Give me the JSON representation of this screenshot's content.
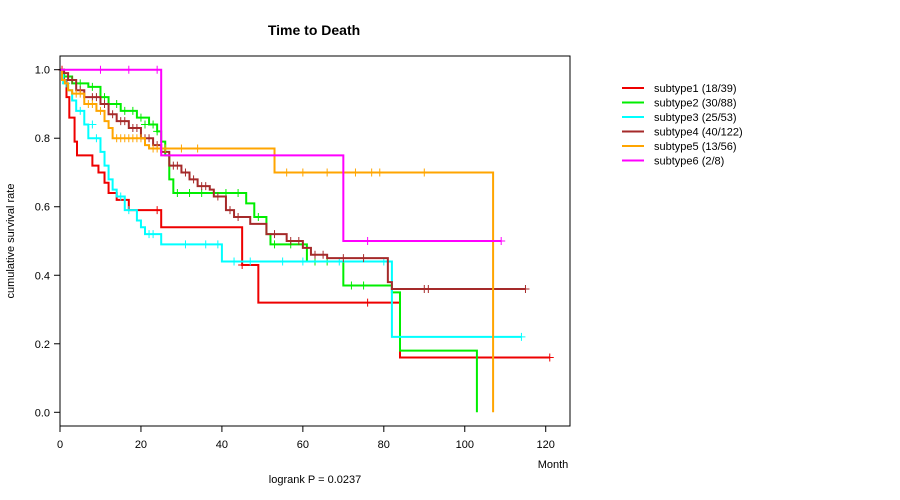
{
  "chart_data": {
    "type": "line",
    "title": "Time to Death",
    "xlabel": "Month",
    "ylabel": "cumulative survival rate",
    "footnote": "logrank P = 0.0237",
    "xlim": [
      0,
      126
    ],
    "ylim": [
      -0.04,
      1.04
    ],
    "x_ticks": [
      0,
      20,
      40,
      60,
      80,
      100,
      120
    ],
    "y_ticks": [
      0.0,
      0.2,
      0.4,
      0.6,
      0.8,
      1.0
    ],
    "y_tick_labels": [
      "0.0",
      "0.2",
      "0.4",
      "0.6",
      "0.8",
      "1.0"
    ],
    "series": [
      {
        "name": "subtype1 (18/39)",
        "color": "#ee0000",
        "steps": [
          [
            0,
            1.0
          ],
          [
            1,
            0.97
          ],
          [
            1.6,
            0.92
          ],
          [
            2.3,
            0.86
          ],
          [
            3.6,
            0.79
          ],
          [
            4.2,
            0.75
          ],
          [
            8,
            0.72
          ],
          [
            9.5,
            0.7
          ],
          [
            11,
            0.67
          ],
          [
            12,
            0.64
          ],
          [
            14,
            0.62
          ],
          [
            17,
            0.59
          ],
          [
            25,
            0.54
          ],
          [
            45,
            0.43
          ],
          [
            49,
            0.32
          ],
          [
            84,
            0.16
          ],
          [
            121,
            0.16
          ]
        ],
        "censors": [
          [
            0.5,
            1.0
          ],
          [
            24,
            0.59
          ],
          [
            45,
            0.43
          ],
          [
            76,
            0.32
          ],
          [
            121,
            0.16
          ]
        ]
      },
      {
        "name": "subtype2 (30/88)",
        "color": "#00ee00",
        "steps": [
          [
            0,
            1.0
          ],
          [
            1,
            0.98
          ],
          [
            3,
            0.96
          ],
          [
            7,
            0.95
          ],
          [
            10,
            0.92
          ],
          [
            12,
            0.9
          ],
          [
            15,
            0.88
          ],
          [
            19,
            0.86
          ],
          [
            22,
            0.84
          ],
          [
            24,
            0.82
          ],
          [
            25,
            0.79
          ],
          [
            26,
            0.75
          ],
          [
            27,
            0.68
          ],
          [
            28,
            0.64
          ],
          [
            46,
            0.61
          ],
          [
            48,
            0.57
          ],
          [
            51,
            0.52
          ],
          [
            52,
            0.49
          ],
          [
            61,
            0.44
          ],
          [
            70,
            0.37
          ],
          [
            82,
            0.35
          ],
          [
            84,
            0.18
          ],
          [
            103,
            0.0
          ]
        ],
        "censors": [
          [
            2,
            0.98
          ],
          [
            5,
            0.96
          ],
          [
            8,
            0.95
          ],
          [
            11,
            0.92
          ],
          [
            14,
            0.9
          ],
          [
            16,
            0.88
          ],
          [
            18,
            0.88
          ],
          [
            20,
            0.86
          ],
          [
            21,
            0.84
          ],
          [
            23,
            0.84
          ],
          [
            24,
            0.82
          ],
          [
            29,
            0.64
          ],
          [
            32,
            0.64
          ],
          [
            35,
            0.64
          ],
          [
            38,
            0.64
          ],
          [
            41,
            0.64
          ],
          [
            44,
            0.64
          ],
          [
            49,
            0.57
          ],
          [
            53,
            0.49
          ],
          [
            57,
            0.49
          ],
          [
            60,
            0.49
          ],
          [
            63,
            0.44
          ],
          [
            66,
            0.44
          ],
          [
            72,
            0.37
          ],
          [
            75,
            0.37
          ]
        ]
      },
      {
        "name": "subtype3 (25/53)",
        "color": "#00ffff",
        "steps": [
          [
            0,
            1.0
          ],
          [
            0.8,
            0.96
          ],
          [
            2,
            0.94
          ],
          [
            3,
            0.91
          ],
          [
            4,
            0.88
          ],
          [
            6,
            0.84
          ],
          [
            7,
            0.8
          ],
          [
            10,
            0.76
          ],
          [
            11,
            0.72
          ],
          [
            12,
            0.68
          ],
          [
            13,
            0.65
          ],
          [
            14,
            0.63
          ],
          [
            16,
            0.59
          ],
          [
            19,
            0.56
          ],
          [
            20,
            0.54
          ],
          [
            21,
            0.52
          ],
          [
            25,
            0.49
          ],
          [
            40,
            0.44
          ],
          [
            82,
            0.22
          ],
          [
            114,
            0.22
          ]
        ],
        "censors": [
          [
            1.5,
            0.96
          ],
          [
            5,
            0.88
          ],
          [
            8,
            0.84
          ],
          [
            9,
            0.8
          ],
          [
            15,
            0.63
          ],
          [
            17,
            0.59
          ],
          [
            22,
            0.52
          ],
          [
            23,
            0.52
          ],
          [
            31,
            0.49
          ],
          [
            36,
            0.49
          ],
          [
            39,
            0.49
          ],
          [
            43,
            0.44
          ],
          [
            47,
            0.44
          ],
          [
            55,
            0.44
          ],
          [
            60,
            0.44
          ],
          [
            69,
            0.44
          ],
          [
            80,
            0.44
          ],
          [
            114,
            0.22
          ]
        ]
      },
      {
        "name": "subtype4 (40/122)",
        "color": "#a52a2a",
        "steps": [
          [
            0,
            1.0
          ],
          [
            1,
            0.99
          ],
          [
            2,
            0.97
          ],
          [
            4,
            0.94
          ],
          [
            6,
            0.92
          ],
          [
            10,
            0.9
          ],
          [
            12,
            0.87
          ],
          [
            14,
            0.85
          ],
          [
            17,
            0.83
          ],
          [
            20,
            0.8
          ],
          [
            23,
            0.78
          ],
          [
            25,
            0.76
          ],
          [
            27,
            0.72
          ],
          [
            30,
            0.7
          ],
          [
            32,
            0.68
          ],
          [
            34,
            0.66
          ],
          [
            37,
            0.65
          ],
          [
            38,
            0.63
          ],
          [
            41,
            0.59
          ],
          [
            43,
            0.57
          ],
          [
            47,
            0.55
          ],
          [
            51,
            0.52
          ],
          [
            56,
            0.5
          ],
          [
            60,
            0.48
          ],
          [
            62,
            0.46
          ],
          [
            66,
            0.45
          ],
          [
            81,
            0.38
          ],
          [
            82,
            0.36
          ],
          [
            115,
            0.36
          ]
        ],
        "censors": [
          [
            3,
            0.97
          ],
          [
            5,
            0.94
          ],
          [
            8,
            0.92
          ],
          [
            9,
            0.92
          ],
          [
            11,
            0.9
          ],
          [
            13,
            0.87
          ],
          [
            15,
            0.85
          ],
          [
            16,
            0.85
          ],
          [
            18,
            0.83
          ],
          [
            19,
            0.83
          ],
          [
            21,
            0.8
          ],
          [
            22,
            0.8
          ],
          [
            24,
            0.78
          ],
          [
            28,
            0.72
          ],
          [
            29,
            0.72
          ],
          [
            31,
            0.7
          ],
          [
            33,
            0.68
          ],
          [
            35,
            0.66
          ],
          [
            36,
            0.66
          ],
          [
            39,
            0.63
          ],
          [
            42,
            0.59
          ],
          [
            44,
            0.57
          ],
          [
            53,
            0.52
          ],
          [
            57,
            0.5
          ],
          [
            59,
            0.5
          ],
          [
            63,
            0.46
          ],
          [
            65,
            0.46
          ],
          [
            70,
            0.45
          ],
          [
            75,
            0.45
          ],
          [
            90,
            0.36
          ],
          [
            91,
            0.36
          ],
          [
            115,
            0.36
          ]
        ]
      },
      {
        "name": "subtype5 (13/56)",
        "color": "#ffa500",
        "steps": [
          [
            0,
            1.0
          ],
          [
            0.5,
            0.97
          ],
          [
            1.2,
            0.96
          ],
          [
            2,
            0.94
          ],
          [
            3,
            0.93
          ],
          [
            6,
            0.9
          ],
          [
            9,
            0.88
          ],
          [
            11,
            0.85
          ],
          [
            12,
            0.83
          ],
          [
            13,
            0.8
          ],
          [
            21,
            0.78
          ],
          [
            22,
            0.77
          ],
          [
            53,
            0.7
          ],
          [
            107,
            0.0
          ]
        ],
        "censors": [
          [
            4,
            0.93
          ],
          [
            5,
            0.93
          ],
          [
            7,
            0.9
          ],
          [
            8,
            0.9
          ],
          [
            10,
            0.88
          ],
          [
            14,
            0.8
          ],
          [
            15,
            0.8
          ],
          [
            16,
            0.8
          ],
          [
            17,
            0.8
          ],
          [
            18,
            0.8
          ],
          [
            19,
            0.8
          ],
          [
            20,
            0.8
          ],
          [
            23,
            0.77
          ],
          [
            24,
            0.77
          ],
          [
            26,
            0.77
          ],
          [
            30,
            0.77
          ],
          [
            34,
            0.77
          ],
          [
            56,
            0.7
          ],
          [
            60,
            0.7
          ],
          [
            66,
            0.7
          ],
          [
            73,
            0.7
          ],
          [
            77,
            0.7
          ],
          [
            79,
            0.7
          ],
          [
            90,
            0.7
          ]
        ]
      },
      {
        "name": "subtype6 (2/8)",
        "color": "#ff00ff",
        "steps": [
          [
            0,
            1.0
          ],
          [
            25,
            0.75
          ],
          [
            70,
            0.5
          ],
          [
            109,
            0.5
          ]
        ],
        "censors": [
          [
            10,
            1.0
          ],
          [
            17,
            1.0
          ],
          [
            24,
            1.0
          ],
          [
            76,
            0.5
          ],
          [
            109,
            0.5
          ]
        ]
      }
    ]
  }
}
